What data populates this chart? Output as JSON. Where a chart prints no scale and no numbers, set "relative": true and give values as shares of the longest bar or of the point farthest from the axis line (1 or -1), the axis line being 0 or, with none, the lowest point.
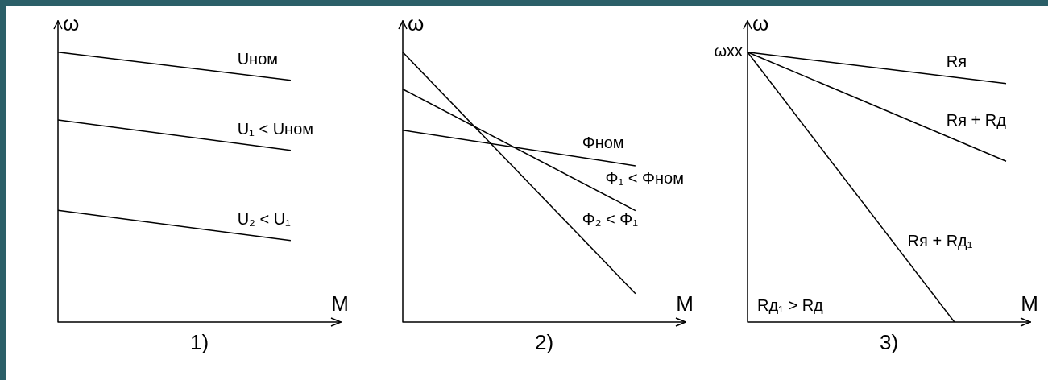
{
  "chart_data": [
    {
      "type": "line",
      "title": "1)",
      "xlabel": "M",
      "ylabel": "ω",
      "relative": true,
      "categories": [
        null,
        null,
        null,
        null,
        null,
        null,
        null,
        null,
        null,
        null,
        null
      ],
      "series": [
        {
          "name": "Uном",
          "color": "#000000",
          "values": [
            1,
            null,
            null,
            null,
            null,
            null,
            null,
            null,
            null,
            0.896,
            null
          ]
        },
        {
          "name": "U₁ < Uном",
          "color": "#000000",
          "values": [
            0.749,
            null,
            null,
            null,
            null,
            null,
            null,
            null,
            null,
            0.636,
            null
          ]
        },
        {
          "name": "U₂ < U₁",
          "color": "#000000",
          "values": [
            0.414,
            null,
            null,
            null,
            null,
            null,
            null,
            null,
            null,
            0.302,
            null
          ]
        }
      ]
    },
    {
      "type": "line",
      "title": "2)",
      "xlabel": "M",
      "ylabel": "ω",
      "relative": true,
      "categories": [
        null,
        null,
        null,
        null,
        null,
        null,
        null,
        null,
        null,
        null,
        null
      ],
      "series": [
        {
          "name": "Φном",
          "color": "#000000",
          "values": [
            0.711,
            null,
            null,
            null,
            null,
            null,
            null,
            null,
            null,
            0.579,
            null
          ]
        },
        {
          "name": "Φ₁ < Φном",
          "color": "#000000",
          "values": [
            0.863,
            null,
            null,
            null,
            null,
            null,
            null,
            null,
            null,
            0.413,
            null
          ]
        },
        {
          "name": "Φ₂ < Φ₁",
          "color": "#000000",
          "values": [
            1,
            null,
            null,
            null,
            null,
            null,
            null,
            null,
            null,
            0.105,
            null
          ]
        }
      ]
    },
    {
      "type": "line",
      "title": "3)",
      "xlabel": "M",
      "ylabel": "ω",
      "relative": true,
      "categories": [
        null,
        null,
        null,
        null,
        null,
        null,
        null,
        null,
        null,
        null,
        null
      ],
      "annotations": [
        "ωхх",
        "Rд₁ > Rд"
      ],
      "series": [
        {
          "name": "Rя",
          "color": "#000000",
          "values": [
            1,
            null,
            null,
            null,
            null,
            null,
            null,
            null,
            null,
            null,
            0.884
          ]
        },
        {
          "name": "Rя + Rд",
          "color": "#000000",
          "values": [
            1,
            null,
            null,
            null,
            null,
            null,
            null,
            null,
            null,
            null,
            0.596
          ]
        },
        {
          "name": "Rя + Rд₁",
          "color": "#000000",
          "values": [
            1,
            null,
            null,
            null,
            null,
            null,
            null,
            null,
            0,
            null,
            null
          ]
        }
      ]
    }
  ]
}
